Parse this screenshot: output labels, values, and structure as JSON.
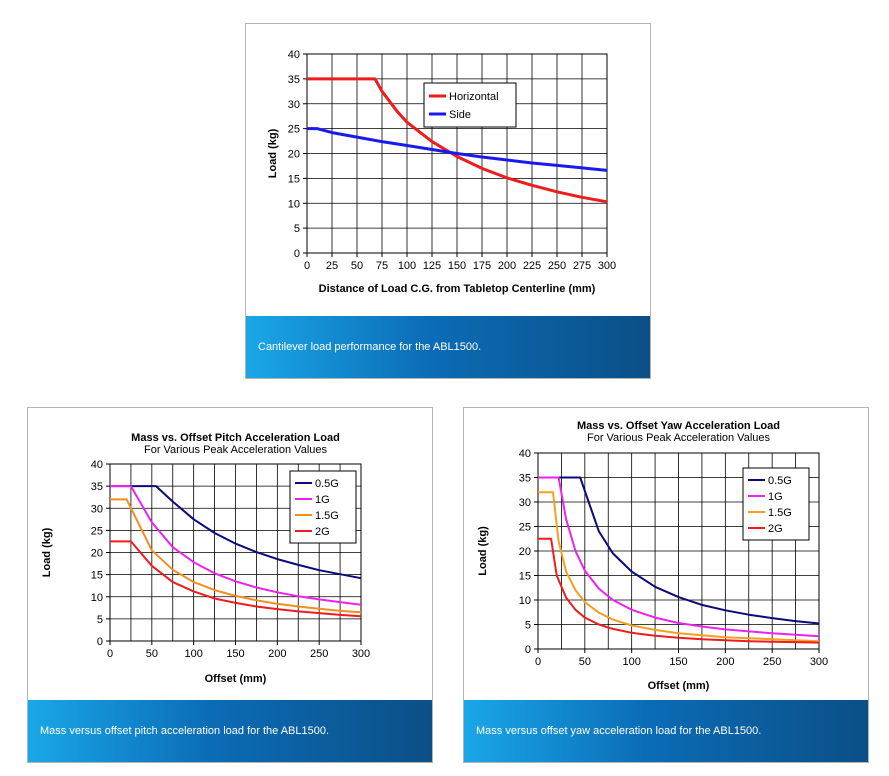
{
  "captions": {
    "cantilever": "Cantilever load performance for the ABL1500.",
    "pitch": "Mass versus offset pitch acceleration load for the ABL1500.",
    "yaw": "Mass versus offset yaw acceleration load for the ABL1500."
  },
  "chart_data": [
    {
      "id": "cantilever",
      "type": "line",
      "title": "",
      "subtitle": "",
      "xlabel": "Distance of Load C.G. from Tabletop Centerline (mm)",
      "ylabel": "Load (kg)",
      "xlim": [
        0,
        300
      ],
      "ylim": [
        0,
        40
      ],
      "xticks": [
        0,
        25,
        50,
        75,
        100,
        125,
        150,
        175,
        200,
        225,
        250,
        275,
        300
      ],
      "yticks": [
        0,
        5,
        10,
        15,
        20,
        25,
        30,
        35,
        40
      ],
      "grid": true,
      "legend": "top-right",
      "series": [
        {
          "name": "Horizontal",
          "color": "#ee1c1c",
          "x": [
            0,
            25,
            50,
            68,
            75,
            90,
            100,
            125,
            150,
            175,
            200,
            225,
            250,
            275,
            300
          ],
          "y": [
            35,
            35,
            35,
            35,
            32.5,
            28.5,
            26.3,
            22.4,
            19.4,
            17.0,
            15.1,
            13.6,
            12.3,
            11.2,
            10.3
          ]
        },
        {
          "name": "Side",
          "color": "#1a1aee",
          "x": [
            0,
            10,
            25,
            50,
            75,
            100,
            125,
            150,
            175,
            200,
            225,
            250,
            275,
            300
          ],
          "y": [
            25,
            25,
            24.2,
            23.3,
            22.4,
            21.6,
            20.8,
            20.0,
            19.3,
            18.7,
            18.1,
            17.6,
            17.1,
            16.6
          ]
        }
      ]
    },
    {
      "id": "pitch",
      "type": "line",
      "title": "Mass vs. Offset Pitch Acceleration Load",
      "subtitle": "For Various Peak Acceleration Values",
      "xlabel": "Offset (mm)",
      "ylabel": "Load (kg)",
      "xlim": [
        0,
        300
      ],
      "ylim": [
        0,
        40
      ],
      "xticks": [
        0,
        50,
        100,
        150,
        200,
        250,
        300
      ],
      "yticks": [
        0,
        5,
        10,
        15,
        20,
        25,
        30,
        35,
        40
      ],
      "grid": true,
      "legend": "top-right",
      "series": [
        {
          "name": "0.5G",
          "color": "#0a0a7a",
          "x": [
            0,
            25,
            55,
            75,
            100,
            125,
            150,
            175,
            200,
            225,
            250,
            275,
            300
          ],
          "y": [
            35,
            35,
            35,
            31.5,
            27.5,
            24.4,
            22.0,
            20.1,
            18.5,
            17.2,
            16.0,
            15.1,
            14.2
          ]
        },
        {
          "name": "1G",
          "color": "#ee22ee",
          "x": [
            0,
            25,
            50,
            75,
            100,
            125,
            150,
            175,
            200,
            225,
            250,
            275,
            300
          ],
          "y": [
            35,
            35,
            26.8,
            21.2,
            17.8,
            15.3,
            13.5,
            12.1,
            11.0,
            10.1,
            9.4,
            8.8,
            8.2
          ]
        },
        {
          "name": "1.5G",
          "color": "#f58c1e",
          "x": [
            0,
            20,
            50,
            75,
            100,
            125,
            150,
            175,
            200,
            225,
            250,
            275,
            300
          ],
          "y": [
            32,
            32,
            20.5,
            16.1,
            13.3,
            11.5,
            10.2,
            9.2,
            8.4,
            7.8,
            7.3,
            6.8,
            6.5
          ]
        },
        {
          "name": "2G",
          "color": "#ee1c1c",
          "x": [
            0,
            25,
            50,
            75,
            100,
            125,
            150,
            175,
            200,
            225,
            250,
            275,
            300
          ],
          "y": [
            22.5,
            22.5,
            17.0,
            13.3,
            11.2,
            9.6,
            8.6,
            7.8,
            7.2,
            6.7,
            6.3,
            5.9,
            5.6
          ]
        }
      ]
    },
    {
      "id": "yaw",
      "type": "line",
      "title": "Mass vs. Offset Yaw Acceleration Load",
      "subtitle": "For Various Peak Acceleration Values",
      "xlabel": "Offset (mm)",
      "ylabel": "Load (kg)",
      "xlim": [
        0,
        300
      ],
      "ylim": [
        0,
        40
      ],
      "xticks": [
        0,
        50,
        100,
        150,
        200,
        250,
        300
      ],
      "yticks": [
        0,
        5,
        10,
        15,
        20,
        25,
        30,
        35,
        40
      ],
      "grid": true,
      "legend": "top-right",
      "series": [
        {
          "name": "0.5G",
          "color": "#0a0a7a",
          "x": [
            0,
            25,
            45,
            55,
            65,
            80,
            100,
            125,
            150,
            175,
            200,
            225,
            250,
            275,
            300
          ],
          "y": [
            35,
            35,
            35,
            29.5,
            24.0,
            19.5,
            15.8,
            12.7,
            10.6,
            9.0,
            7.9,
            7.0,
            6.3,
            5.7,
            5.2
          ]
        },
        {
          "name": "1G",
          "color": "#ee22ee",
          "x": [
            0,
            15,
            22,
            30,
            40,
            50,
            65,
            80,
            100,
            125,
            150,
            175,
            200,
            225,
            250,
            275,
            300
          ],
          "y": [
            35,
            35,
            35,
            26.5,
            20.0,
            16.0,
            12.3,
            10.0,
            8.0,
            6.4,
            5.3,
            4.6,
            4.0,
            3.6,
            3.2,
            2.9,
            2.6
          ]
        },
        {
          "name": "1.5G",
          "color": "#f5a01e",
          "x": [
            0,
            12,
            16,
            22,
            30,
            40,
            50,
            65,
            80,
            100,
            125,
            150,
            175,
            200,
            225,
            250,
            275,
            300
          ],
          "y": [
            32,
            32,
            32,
            22.0,
            15.8,
            12.0,
            9.6,
            7.4,
            6.0,
            4.8,
            3.9,
            3.2,
            2.8,
            2.4,
            2.2,
            2.0,
            1.8,
            1.6
          ]
        },
        {
          "name": "2G",
          "color": "#ee1c1c",
          "x": [
            0,
            10,
            14,
            20,
            30,
            40,
            50,
            65,
            80,
            100,
            125,
            150,
            175,
            200,
            225,
            250,
            275,
            300
          ],
          "y": [
            22.5,
            22.5,
            22.5,
            15.0,
            10.5,
            8.0,
            6.4,
            5.0,
            4.1,
            3.3,
            2.7,
            2.3,
            2.0,
            1.8,
            1.6,
            1.5,
            1.4,
            1.3
          ]
        }
      ]
    }
  ]
}
